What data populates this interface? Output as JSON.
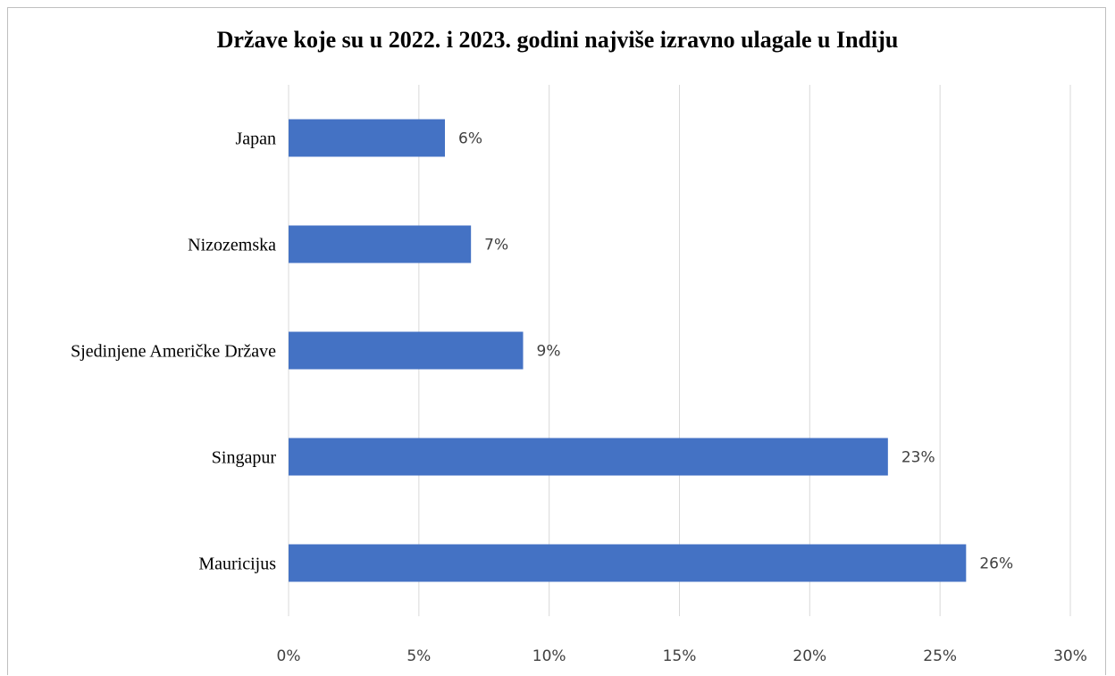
{
  "chart_data": {
    "type": "bar",
    "orientation": "horizontal",
    "title": "Države koje su u 2022. i 2023. godini najviše izravno ulagale u Indiju",
    "categories": [
      "Japan",
      "Nizozemska",
      "Sjedinjene Američke Države",
      "Singapur",
      "Mauricijus"
    ],
    "values": [
      6,
      7,
      9,
      23,
      26
    ],
    "data_labels": [
      "6%",
      "7%",
      "9%",
      "23%",
      "26%"
    ],
    "xticks": [
      "0%",
      "5%",
      "10%",
      "15%",
      "20%",
      "25%",
      "30%"
    ],
    "xlim": [
      0,
      30
    ],
    "grid": true,
    "bar_color": "#4472c4",
    "grid_color": "#d9d9d9"
  }
}
